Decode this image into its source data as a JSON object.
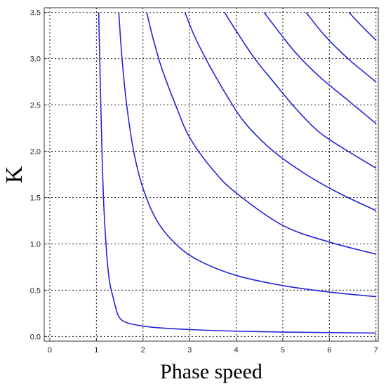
{
  "chart_data": {
    "type": "line",
    "title": "",
    "xlabel": "Phase speed",
    "ylabel": "K",
    "xlim": [
      -0.12,
      7.05
    ],
    "ylim": [
      -0.05,
      3.55
    ],
    "xticks": [
      "0",
      "1",
      "2",
      "3",
      "4",
      "5",
      "6",
      "7"
    ],
    "yticks": [
      "0.0",
      "0.5",
      "1.0",
      "1.5",
      "2.0",
      "2.5",
      "3.0",
      "3.5"
    ],
    "grid": true,
    "legend": "none",
    "line_color": "#2424d6",
    "series": [
      {
        "x": [
          1.05,
          1.08,
          1.12,
          1.16,
          1.22,
          1.28,
          1.36,
          1.42,
          1.45,
          1.5,
          1.6,
          1.8,
          2.2,
          3.0,
          4.0,
          5.0,
          6.0,
          7.0
        ],
        "y": [
          3.5,
          2.8,
          2.0,
          1.4,
          0.9,
          0.6,
          0.42,
          0.3,
          0.25,
          0.2,
          0.16,
          0.13,
          0.1,
          0.075,
          0.058,
          0.048,
          0.042,
          0.038
        ]
      },
      {
        "x": [
          1.48,
          1.55,
          1.65,
          1.8,
          2.0,
          2.3,
          2.7,
          3.2,
          4.0,
          5.0,
          6.0,
          7.0
        ],
        "y": [
          3.5,
          3.0,
          2.5,
          2.0,
          1.6,
          1.25,
          1.0,
          0.82,
          0.66,
          0.55,
          0.48,
          0.43
        ]
      },
      {
        "x": [
          2.08,
          2.2,
          2.4,
          2.7,
          3.0,
          3.5,
          4.0,
          5.0,
          6.0,
          7.0
        ],
        "y": [
          3.5,
          3.25,
          2.9,
          2.5,
          2.15,
          1.8,
          1.55,
          1.2,
          1.02,
          0.89
        ]
      },
      {
        "x": [
          2.9,
          3.1,
          3.4,
          3.8,
          4.2,
          4.8,
          5.5,
          6.2,
          7.0
        ],
        "y": [
          3.5,
          3.25,
          2.95,
          2.6,
          2.3,
          2.0,
          1.75,
          1.55,
          1.36
        ]
      },
      {
        "x": [
          3.75,
          4.0,
          4.4,
          4.8,
          5.3,
          5.8,
          6.4,
          7.0
        ],
        "y": [
          3.5,
          3.3,
          3.0,
          2.75,
          2.45,
          2.2,
          2.0,
          1.82
        ]
      },
      {
        "x": [
          4.6,
          4.9,
          5.3,
          5.8,
          6.4,
          7.0
        ],
        "y": [
          3.5,
          3.3,
          3.05,
          2.8,
          2.55,
          2.3
        ]
      },
      {
        "x": [
          5.5,
          5.9,
          6.4,
          7.0
        ],
        "y": [
          3.5,
          3.25,
          3.0,
          2.75
        ]
      },
      {
        "x": [
          6.42,
          6.7,
          7.0
        ],
        "y": [
          3.5,
          3.35,
          3.2
        ]
      }
    ]
  }
}
